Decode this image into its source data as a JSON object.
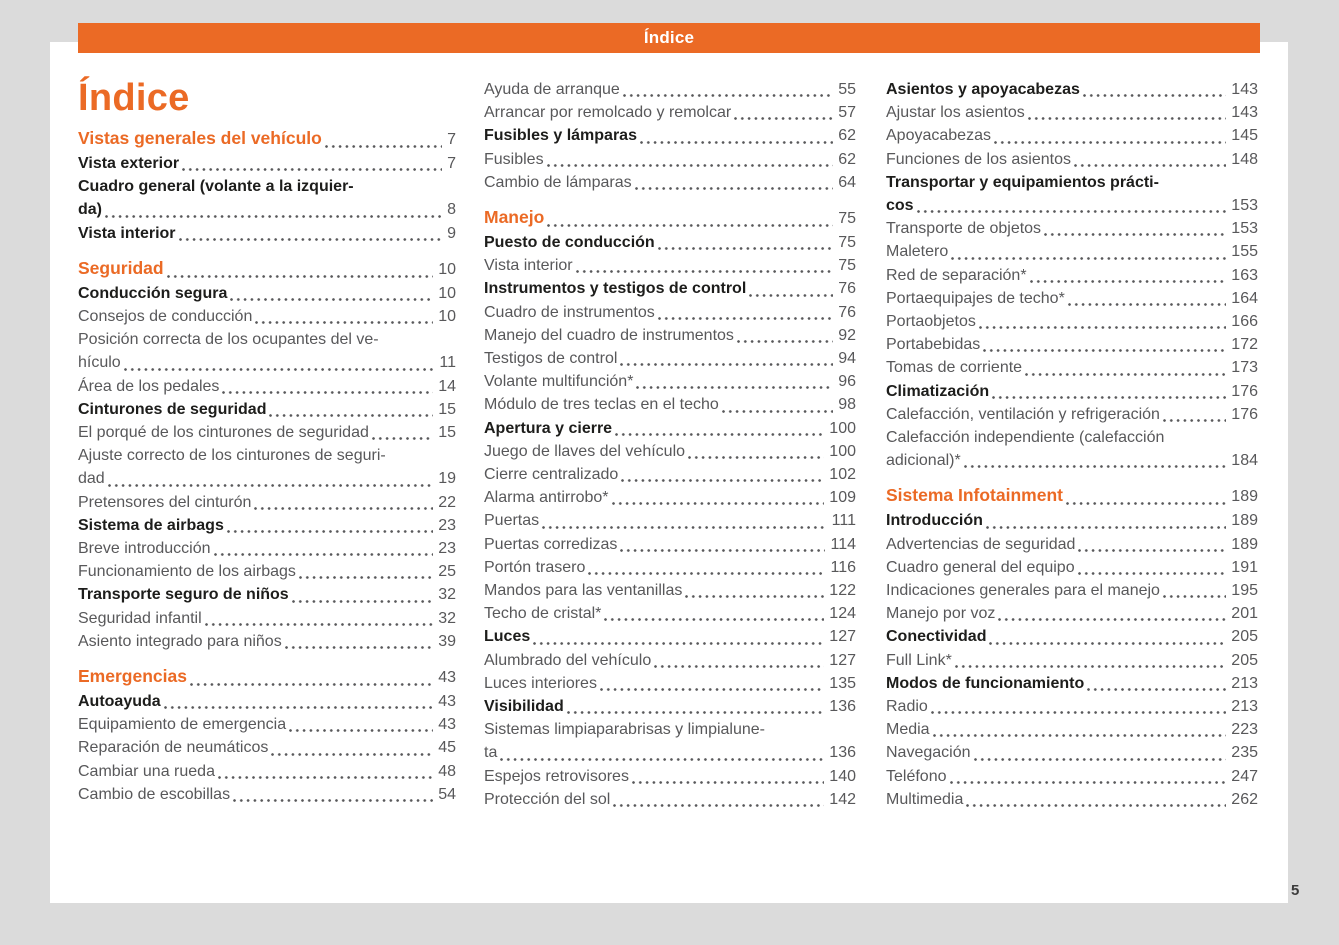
{
  "header": {
    "bar_title": "Índice"
  },
  "title": "Índice",
  "page_number": "5",
  "colors": {
    "accent": "#EB6A25",
    "background": "#DBDBDB",
    "page": "#FFFFFF",
    "text_normal": "#58585A",
    "text_bold": "#1D1D1B"
  },
  "toc": {
    "columns": [
      {
        "entries": [
          {
            "label": "Vistas generales del vehículo",
            "page": "7",
            "level": "section"
          },
          {
            "label": "Vista exterior",
            "page": "7",
            "level": "sub"
          },
          {
            "label": "Cuadro general (volante a la izquier-\nda)",
            "page": "8",
            "level": "sub"
          },
          {
            "label": "Vista interior",
            "page": "9",
            "level": "sub"
          },
          {
            "label": "Seguridad",
            "page": "10",
            "level": "section",
            "gap_before": true
          },
          {
            "label": "Conducción segura",
            "page": "10",
            "level": "sub"
          },
          {
            "label": "Consejos de conducción",
            "page": "10",
            "level": "item"
          },
          {
            "label": "Posición correcta de los ocupantes del ve-\nhículo",
            "page": "11",
            "level": "item"
          },
          {
            "label": "Área de los pedales",
            "page": "14",
            "level": "item"
          },
          {
            "label": "Cinturones de seguridad",
            "page": "15",
            "level": "sub"
          },
          {
            "label": "El porqué de los cinturones de seguridad",
            "page": "15",
            "level": "item"
          },
          {
            "label": "Ajuste correcto de los cinturones de seguri-\ndad",
            "page": "19",
            "level": "item"
          },
          {
            "label": "Pretensores del cinturón",
            "page": "22",
            "level": "item"
          },
          {
            "label": "Sistema de airbags",
            "page": "23",
            "level": "sub"
          },
          {
            "label": "Breve introducción",
            "page": "23",
            "level": "item"
          },
          {
            "label": "Funcionamiento de los airbags",
            "page": "25",
            "level": "item"
          },
          {
            "label": "Transporte seguro de niños",
            "page": "32",
            "level": "sub"
          },
          {
            "label": "Seguridad infantil",
            "page": "32",
            "level": "item"
          },
          {
            "label": "Asiento integrado para niños",
            "page": "39",
            "level": "item"
          },
          {
            "label": "Emergencias",
            "page": "43",
            "level": "section",
            "gap_before": true
          },
          {
            "label": "Autoayuda",
            "page": "43",
            "level": "sub"
          },
          {
            "label": "Equipamiento de emergencia",
            "page": "43",
            "level": "item"
          },
          {
            "label": "Reparación de neumáticos",
            "page": "45",
            "level": "item"
          },
          {
            "label": "Cambiar una rueda",
            "page": "48",
            "level": "item"
          },
          {
            "label": "Cambio de escobillas",
            "page": "54",
            "level": "item"
          }
        ]
      },
      {
        "entries": [
          {
            "label": "Ayuda de arranque",
            "page": "55",
            "level": "item"
          },
          {
            "label": "Arrancar por remolcado y remolcar",
            "page": "57",
            "level": "item"
          },
          {
            "label": "Fusibles y lámparas",
            "page": "62",
            "level": "sub"
          },
          {
            "label": "Fusibles",
            "page": "62",
            "level": "item"
          },
          {
            "label": "Cambio de lámparas",
            "page": "64",
            "level": "item"
          },
          {
            "label": "Manejo",
            "page": "75",
            "level": "section",
            "gap_before": true
          },
          {
            "label": "Puesto de conducción",
            "page": "75",
            "level": "sub"
          },
          {
            "label": "Vista interior",
            "page": "75",
            "level": "item"
          },
          {
            "label": "Instrumentos y testigos de control",
            "page": "76",
            "level": "sub"
          },
          {
            "label": "Cuadro de instrumentos",
            "page": "76",
            "level": "item"
          },
          {
            "label": "Manejo del cuadro de instrumentos",
            "page": "92",
            "level": "item"
          },
          {
            "label": "Testigos de control",
            "page": "94",
            "level": "item"
          },
          {
            "label": "Volante multifunción*",
            "page": "96",
            "level": "item"
          },
          {
            "label": "Módulo de tres teclas en el techo",
            "page": "98",
            "level": "item"
          },
          {
            "label": "Apertura y cierre",
            "page": "100",
            "level": "sub"
          },
          {
            "label": "Juego de llaves del vehículo",
            "page": "100",
            "level": "item"
          },
          {
            "label": "Cierre centralizado",
            "page": "102",
            "level": "item"
          },
          {
            "label": "Alarma antirrobo*",
            "page": "109",
            "level": "item"
          },
          {
            "label": "Puertas",
            "page": "111",
            "level": "item"
          },
          {
            "label": "Puertas corredizas",
            "page": "114",
            "level": "item"
          },
          {
            "label": "Portón trasero",
            "page": "116",
            "level": "item"
          },
          {
            "label": "Mandos para las ventanillas",
            "page": "122",
            "level": "item"
          },
          {
            "label": "Techo de cristal*",
            "page": "124",
            "level": "item"
          },
          {
            "label": "Luces",
            "page": "127",
            "level": "sub"
          },
          {
            "label": "Alumbrado del vehículo",
            "page": "127",
            "level": "item"
          },
          {
            "label": "Luces interiores",
            "page": "135",
            "level": "item"
          },
          {
            "label": "Visibilidad",
            "page": "136",
            "level": "sub"
          },
          {
            "label": "Sistemas limpiaparabrisas y limpialune-\nta",
            "page": "136",
            "level": "item"
          },
          {
            "label": "Espejos retrovisores",
            "page": "140",
            "level": "item"
          },
          {
            "label": "Protección del sol",
            "page": "142",
            "level": "item"
          }
        ]
      },
      {
        "entries": [
          {
            "label": "Asientos y apoyacabezas",
            "page": "143",
            "level": "sub"
          },
          {
            "label": "Ajustar los asientos",
            "page": "143",
            "level": "item"
          },
          {
            "label": "Apoyacabezas",
            "page": "145",
            "level": "item"
          },
          {
            "label": "Funciones de los asientos",
            "page": "148",
            "level": "item"
          },
          {
            "label": "Transportar y equipamientos prácti-\ncos",
            "page": "153",
            "level": "sub"
          },
          {
            "label": "Transporte de objetos",
            "page": "153",
            "level": "item"
          },
          {
            "label": "Maletero",
            "page": "155",
            "level": "item"
          },
          {
            "label": "Red de separación*",
            "page": "163",
            "level": "item"
          },
          {
            "label": "Portaequipajes de techo*",
            "page": "164",
            "level": "item"
          },
          {
            "label": "Portaobjetos",
            "page": "166",
            "level": "item"
          },
          {
            "label": "Portabebidas",
            "page": "172",
            "level": "item"
          },
          {
            "label": "Tomas de corriente",
            "page": "173",
            "level": "item"
          },
          {
            "label": "Climatización",
            "page": "176",
            "level": "sub"
          },
          {
            "label": "Calefacción, ventilación y refrigeración",
            "page": "176",
            "level": "item"
          },
          {
            "label": "Calefacción independiente (calefacción\nadicional)*",
            "page": "184",
            "level": "item"
          },
          {
            "label": "Sistema Infotainment",
            "page": "189",
            "level": "section",
            "gap_before": true
          },
          {
            "label": "Introducción",
            "page": "189",
            "level": "sub"
          },
          {
            "label": "Advertencias de seguridad",
            "page": "189",
            "level": "item"
          },
          {
            "label": "Cuadro general del equipo",
            "page": "191",
            "level": "item"
          },
          {
            "label": "Indicaciones generales para el manejo",
            "page": "195",
            "level": "item"
          },
          {
            "label": "Manejo por voz",
            "page": "201",
            "level": "item"
          },
          {
            "label": "Conectividad",
            "page": "205",
            "level": "sub"
          },
          {
            "label": "Full Link*",
            "page": "205",
            "level": "item"
          },
          {
            "label": "Modos de funcionamiento",
            "page": "213",
            "level": "sub"
          },
          {
            "label": "Radio",
            "page": "213",
            "level": "item"
          },
          {
            "label": "Media",
            "page": "223",
            "level": "item"
          },
          {
            "label": "Navegación",
            "page": "235",
            "level": "item"
          },
          {
            "label": "Teléfono",
            "page": "247",
            "level": "item"
          },
          {
            "label": "Multimedia",
            "page": "262",
            "level": "item"
          }
        ]
      }
    ]
  }
}
